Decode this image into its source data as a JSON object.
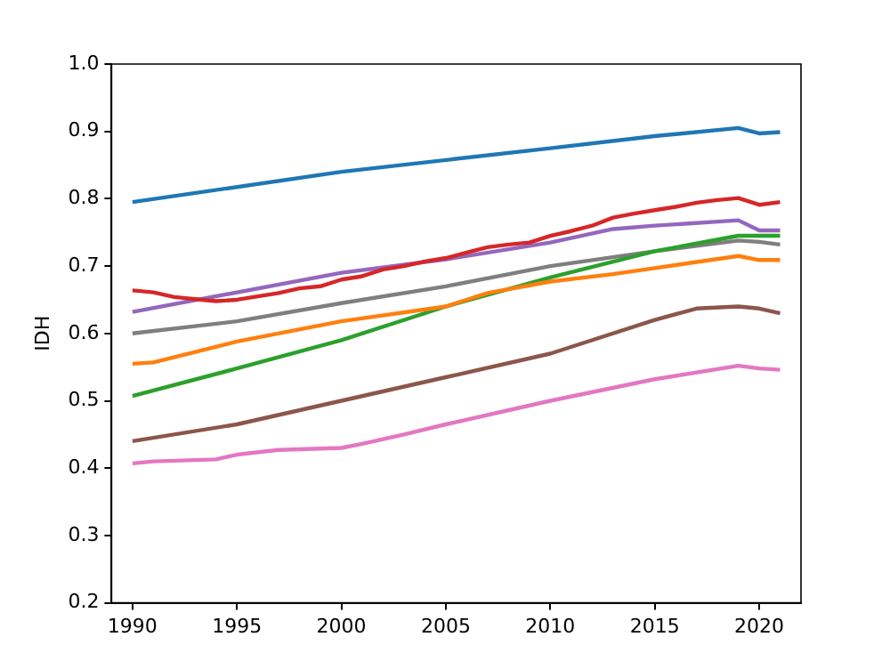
{
  "chart_data": {
    "type": "line",
    "ylabel": "IDH",
    "xlim": [
      1989,
      2022
    ],
    "xticks": [
      1990,
      1995,
      2000,
      2005,
      2010,
      2015,
      2020
    ],
    "ylim": [
      0.2,
      1.0
    ],
    "yticks": [
      0.2,
      0.3,
      0.4,
      0.5,
      0.6,
      0.7,
      0.8,
      0.9,
      {
        "value": 1,
        "label": "1.0"
      }
    ],
    "grid": false,
    "legend": false,
    "marker": "none",
    "line_style": "solid",
    "series": [
      {
        "color": "#1f77b4",
        "x": [
          1990,
          2000,
          2010,
          2015,
          2019,
          2020,
          2021
        ],
        "values": [
          0.795,
          0.84,
          0.875,
          0.893,
          0.905,
          0.897,
          0.899
        ]
      },
      {
        "color": "#ff7f0e",
        "x": [
          1990,
          1991,
          1995,
          2000,
          2005,
          2007,
          2010,
          2013,
          2015,
          2019,
          2020,
          2021
        ],
        "values": [
          0.555,
          0.557,
          0.588,
          0.618,
          0.64,
          0.66,
          0.677,
          0.688,
          0.697,
          0.715,
          0.709,
          0.709
        ]
      },
      {
        "color": "#2ca02c",
        "x": [
          1990,
          1995,
          2000,
          2005,
          2010,
          2015,
          2019,
          2021
        ],
        "values": [
          0.507,
          0.548,
          0.59,
          0.64,
          0.683,
          0.722,
          0.745,
          0.745
        ]
      },
      {
        "color": "#d62728",
        "x": [
          1990,
          1991,
          1992,
          1993,
          1994,
          1995,
          1996,
          1997,
          1998,
          1999,
          2000,
          2001,
          2002,
          2003,
          2004,
          2005,
          2006,
          2007,
          2008,
          2009,
          2010,
          2011,
          2012,
          2013,
          2014,
          2015,
          2016,
          2017,
          2018,
          2019,
          2020,
          2021
        ],
        "values": [
          0.664,
          0.661,
          0.654,
          0.651,
          0.648,
          0.65,
          0.655,
          0.66,
          0.667,
          0.67,
          0.68,
          0.685,
          0.695,
          0.7,
          0.707,
          0.712,
          0.72,
          0.728,
          0.732,
          0.735,
          0.745,
          0.752,
          0.76,
          0.772,
          0.778,
          0.783,
          0.788,
          0.794,
          0.798,
          0.801,
          0.791,
          0.795
        ]
      },
      {
        "color": "#9467bd",
        "x": [
          1990,
          2000,
          2005,
          2010,
          2013,
          2015,
          2019,
          2020,
          2021
        ],
        "values": [
          0.632,
          0.69,
          0.71,
          0.735,
          0.755,
          0.76,
          0.768,
          0.753,
          0.753
        ]
      },
      {
        "color": "#8c564b",
        "x": [
          1990,
          1995,
          2000,
          2005,
          2010,
          2015,
          2017,
          2019,
          2020,
          2021
        ],
        "values": [
          0.44,
          0.465,
          0.5,
          0.535,
          0.57,
          0.62,
          0.637,
          0.64,
          0.637,
          0.63
        ]
      },
      {
        "color": "#e377c2",
        "x": [
          1990,
          1991,
          1994,
          1995,
          1997,
          2000,
          2001,
          2003,
          2005,
          2010,
          2015,
          2019,
          2020,
          2021
        ],
        "values": [
          0.407,
          0.41,
          0.413,
          0.42,
          0.427,
          0.43,
          0.436,
          0.45,
          0.465,
          0.5,
          0.532,
          0.552,
          0.548,
          0.546
        ]
      },
      {
        "color": "#7f7f7f",
        "x": [
          1990,
          1995,
          2000,
          2005,
          2010,
          2015,
          2019,
          2020,
          2021
        ],
        "values": [
          0.6,
          0.618,
          0.645,
          0.67,
          0.7,
          0.722,
          0.738,
          0.736,
          0.732
        ]
      }
    ]
  }
}
